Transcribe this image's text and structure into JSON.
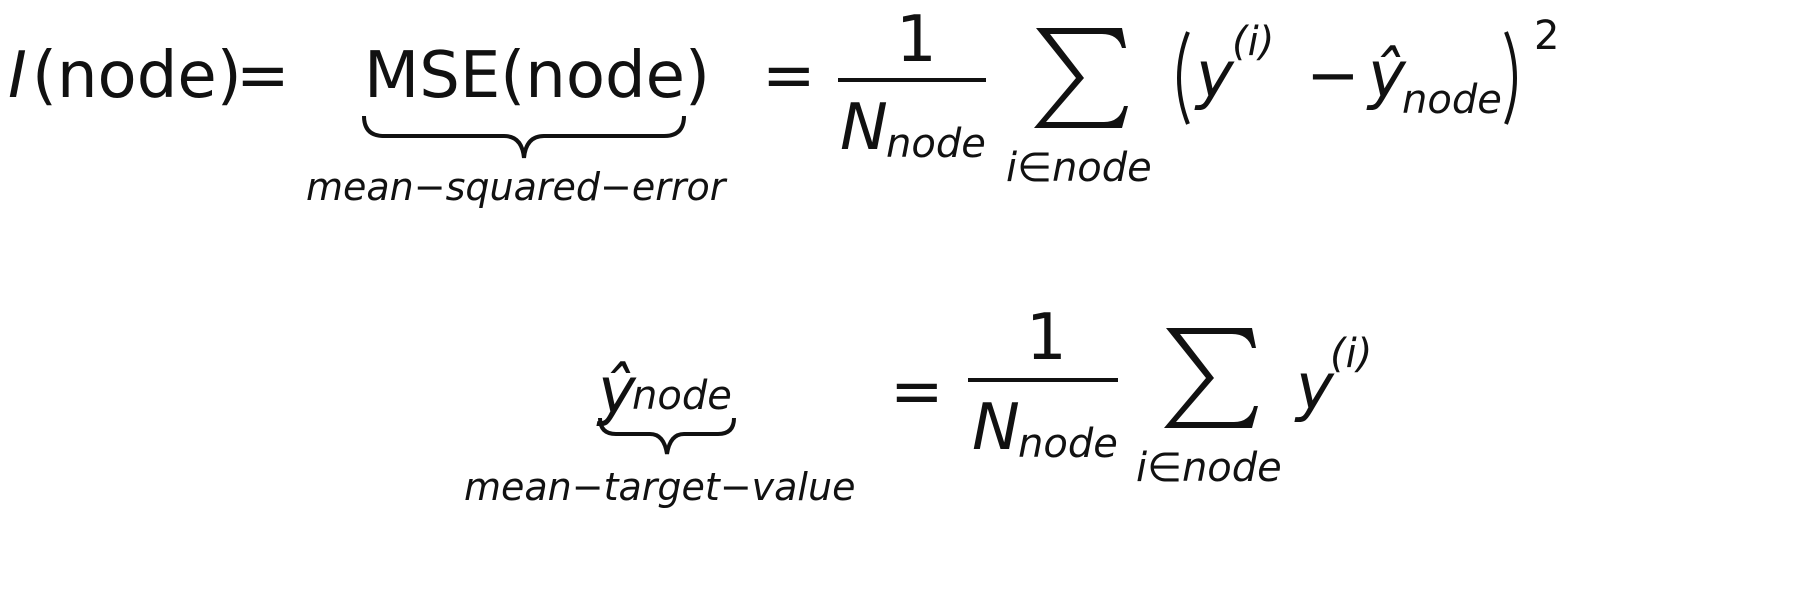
{
  "line1": {
    "I": "I",
    "node_arg": "(node)",
    "eq1": "=",
    "mse": "MSE(node)",
    "mse_under": "mean−squared−error",
    "eq2": "=",
    "numerator": "1",
    "denom_N": "N",
    "denom_sub": "node",
    "sum_sub": "i∈node",
    "y": "y",
    "y_sup": "(i)",
    "minus": "−",
    "yhat": "ŷ",
    "yhat_sub": "node",
    "power": "2"
  },
  "line2": {
    "yhat": "ŷ",
    "yhat_sub": "node",
    "under": "mean−target−value",
    "eq": "=",
    "numerator": "1",
    "denom_N": "N",
    "denom_sub": "node",
    "sum_sub": "i∈node",
    "y": "y",
    "y_sup": "(i)"
  }
}
